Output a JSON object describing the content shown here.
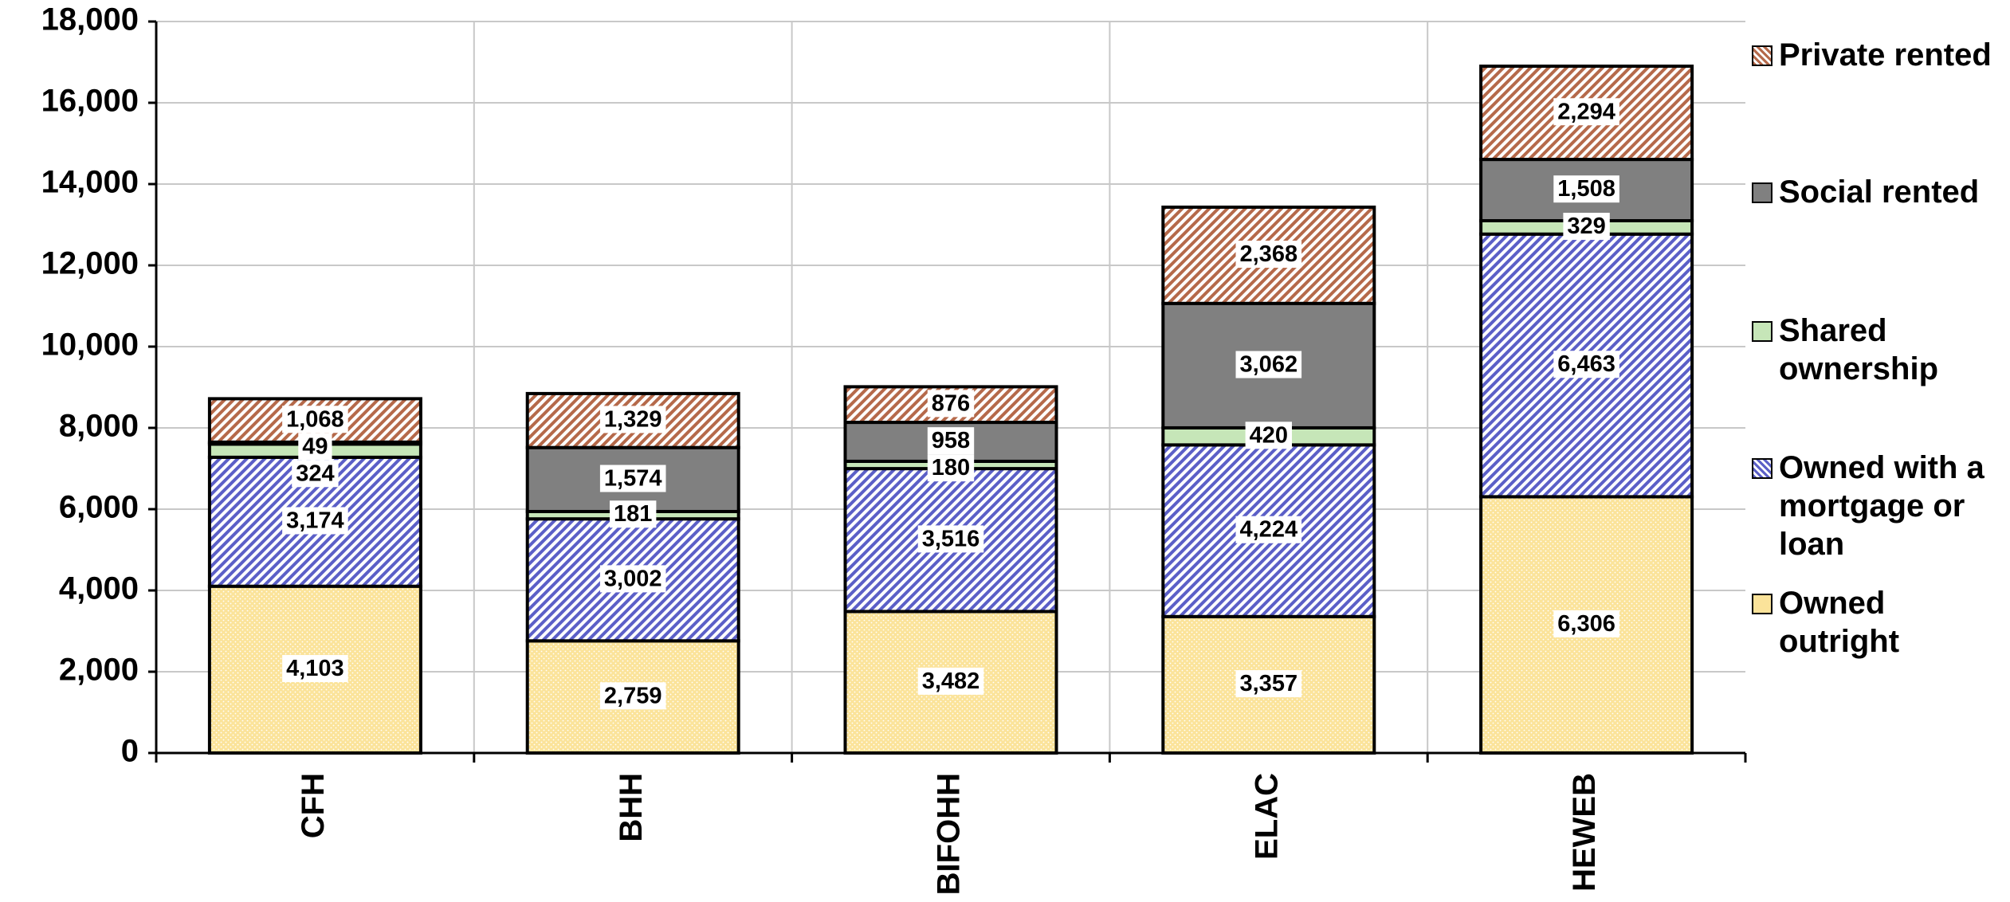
{
  "chart_data": {
    "type": "stacked_bar",
    "categories": [
      "CFH",
      "BHH",
      "BIFOHH",
      "ELAC",
      "HEWEB"
    ],
    "series": [
      {
        "name": "Owned outright",
        "color": "#fbe39a",
        "pattern": "dots",
        "values": [
          4103,
          2759,
          3482,
          3357,
          6306
        ],
        "value_labels": [
          "4,103",
          "2,759",
          "3,482",
          "3,357",
          "6,306"
        ]
      },
      {
        "name": "Owned with a mortgage or loan",
        "color": "#5b5fc7",
        "pattern": "hatch",
        "values": [
          3174,
          3002,
          3516,
          4224,
          6463
        ],
        "value_labels": [
          "3,174",
          "3,002",
          "3,516",
          "4,224",
          "6,463"
        ]
      },
      {
        "name": "Shared ownership",
        "color": "#c6e6b8",
        "pattern": "solid",
        "values": [
          324,
          181,
          180,
          420,
          329
        ]
      },
      {
        "name": "Social rented",
        "color": "#808080",
        "pattern": "solid",
        "values": [
          49,
          1574,
          958,
          3062,
          1508
        ],
        "value_labels": [
          "49",
          "1,574",
          "958",
          "3,062",
          "1,508"
        ]
      },
      {
        "name": "Private rented",
        "color": "#b5694a",
        "pattern": "hatch",
        "values": [
          1068,
          1329,
          876,
          2368,
          2294
        ],
        "value_labels": [
          "1,068",
          "1,329",
          "876",
          "2,368",
          "2,294"
        ]
      }
    ],
    "ylim": [
      0,
      18000
    ],
    "yticks": [
      0,
      {
        "value": 2000,
        "label": "2,000"
      },
      {
        "value": 4000,
        "label": "4,000"
      },
      {
        "value": 6000,
        "label": "6,000"
      },
      {
        "value": 8000,
        "label": "8,000"
      },
      {
        "value": 10000,
        "label": "10,000"
      },
      {
        "value": 12000,
        "label": "12,000"
      },
      {
        "value": 14000,
        "label": "14,000"
      },
      {
        "value": 16000,
        "label": "16,000"
      },
      {
        "value": 18000,
        "label": "18,000"
      }
    ],
    "grid": true,
    "legend": "right"
  }
}
